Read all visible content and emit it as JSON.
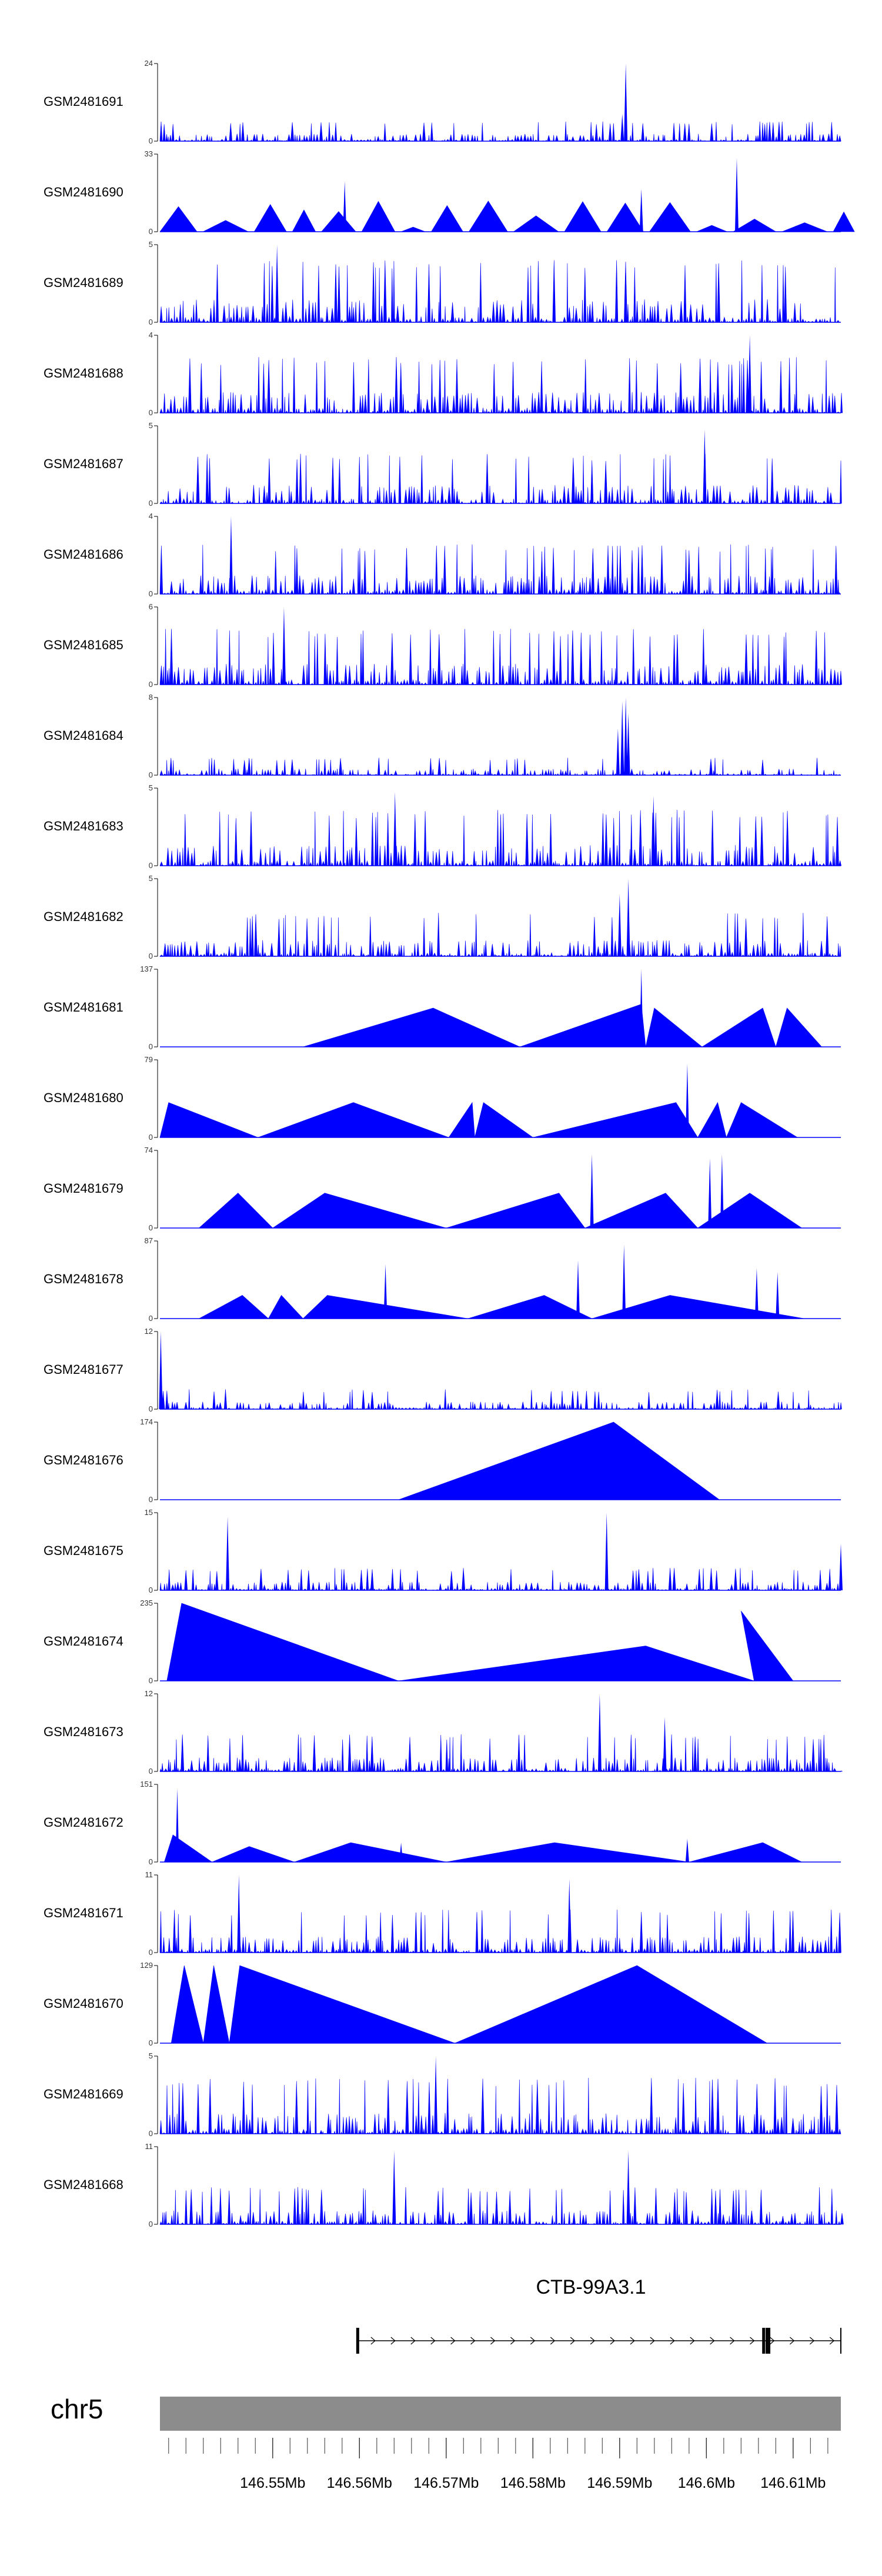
{
  "colors": {
    "signal": "#0000ff",
    "axis": "#000000",
    "ideogram": "#8c8c8c",
    "gene": "#000000"
  },
  "chart_data": {
    "type": "area",
    "tracks": [
      {
        "name": "GSM2481691",
        "ymax": 24,
        "shape": "noise",
        "scale": 0.16,
        "spikes": [
          [
            146.5907,
            1.0
          ],
          [
            146.5903,
            0.35
          ]
        ]
      },
      {
        "name": "GSM2481690",
        "ymax": 33,
        "shape": "tri",
        "scale": 0.3,
        "spikes": [
          [
            146.6035,
            0.95
          ],
          [
            146.5925,
            0.55
          ],
          [
            146.5583,
            0.65
          ]
        ]
      },
      {
        "name": "GSM2481689",
        "ymax": 5,
        "shape": "noise",
        "scale": 0.5,
        "spikes": [
          [
            146.5505,
            1.0
          ]
        ]
      },
      {
        "name": "GSM2481688",
        "ymax": 4,
        "shape": "noise",
        "scale": 0.45,
        "spikes": [
          [
            146.605,
            1.0
          ]
        ]
      },
      {
        "name": "GSM2481687",
        "ymax": 5,
        "shape": "noise",
        "scale": 0.4,
        "spikes": [
          [
            146.5998,
            0.95
          ]
        ]
      },
      {
        "name": "GSM2481686",
        "ymax": 4,
        "shape": "noise",
        "scale": 0.4,
        "spikes": [
          [
            146.5452,
            1.0
          ]
        ]
      },
      {
        "name": "GSM2481685",
        "ymax": 6,
        "shape": "noise",
        "scale": 0.45,
        "spikes": [
          [
            146.5513,
            1.0
          ]
        ]
      },
      {
        "name": "GSM2481684",
        "ymax": 8,
        "shape": "noise",
        "scale": 0.14,
        "spikes": [
          [
            146.5903,
            0.95
          ],
          [
            146.5907,
            1.0
          ],
          [
            146.591,
            0.8
          ],
          [
            146.5898,
            0.6
          ]
        ]
      },
      {
        "name": "GSM2481683",
        "ymax": 5,
        "shape": "noise",
        "scale": 0.45,
        "spikes": [
          [
            146.5641,
            0.95
          ],
          [
            146.5939,
            0.9
          ]
        ]
      },
      {
        "name": "GSM2481682",
        "ymax": 5,
        "shape": "noise",
        "scale": 0.35,
        "spikes": [
          [
            146.591,
            1.0
          ],
          [
            146.59,
            0.8
          ]
        ]
      },
      {
        "name": "GSM2481681",
        "ymax": 137,
        "shape": "wide",
        "scale": 0.0,
        "peaks": [
          [
            146.5535,
            0.0
          ],
          [
            146.5685,
            0.5
          ],
          [
            146.5785,
            0.0
          ],
          [
            146.5925,
            0.55
          ],
          [
            146.593,
            0.0
          ],
          [
            146.594,
            0.5
          ],
          [
            146.5995,
            0.0
          ],
          [
            146.6065,
            0.5
          ],
          [
            146.608,
            0.0
          ],
          [
            146.6093,
            0.5
          ],
          [
            146.6133,
            0.0
          ]
        ],
        "spikes": [
          [
            146.5925,
            1.0
          ]
        ]
      },
      {
        "name": "GSM2481680",
        "ymax": 79,
        "shape": "wide",
        "scale": 0.0,
        "peaks": [
          [
            146.537,
            0.0
          ],
          [
            146.538,
            0.45
          ],
          [
            146.5483,
            0.0
          ],
          [
            146.5593,
            0.45
          ],
          [
            146.5703,
            0.0
          ],
          [
            146.573,
            0.45
          ],
          [
            146.5733,
            0.0
          ],
          [
            146.5743,
            0.45
          ],
          [
            146.58,
            0.0
          ],
          [
            146.5965,
            0.45
          ],
          [
            146.599,
            0.0
          ],
          [
            146.6013,
            0.45
          ],
          [
            146.6023,
            0.0
          ],
          [
            146.604,
            0.45
          ],
          [
            146.6105,
            0.0
          ]
        ],
        "spikes": [
          [
            146.5978,
            0.95
          ]
        ]
      },
      {
        "name": "GSM2481679",
        "ymax": 74,
        "shape": "wide",
        "scale": 0.0,
        "peaks": [
          [
            146.5415,
            0.0
          ],
          [
            146.546,
            0.45
          ],
          [
            146.55,
            0.0
          ],
          [
            146.556,
            0.45
          ],
          [
            146.57,
            0.0
          ],
          [
            146.583,
            0.45
          ],
          [
            146.586,
            0.0
          ],
          [
            146.5953,
            0.45
          ],
          [
            146.599,
            0.0
          ],
          [
            146.605,
            0.45
          ],
          [
            146.611,
            0.0
          ]
        ],
        "spikes": [
          [
            146.5868,
            0.95
          ],
          [
            146.6004,
            0.9
          ],
          [
            146.6018,
            0.95
          ]
        ]
      },
      {
        "name": "GSM2481678",
        "ymax": 87,
        "shape": "wide",
        "scale": 0.0,
        "peaks": [
          [
            146.5415,
            0.0
          ],
          [
            146.5465,
            0.3
          ],
          [
            146.5495,
            0.0
          ],
          [
            146.551,
            0.3
          ],
          [
            146.5535,
            0.0
          ],
          [
            146.5563,
            0.3
          ],
          [
            146.5725,
            0.0
          ],
          [
            146.5813,
            0.3
          ],
          [
            146.5868,
            0.0
          ],
          [
            146.5958,
            0.3
          ],
          [
            146.6113,
            0.0
          ]
        ],
        "spikes": [
          [
            146.563,
            0.7
          ],
          [
            146.5852,
            0.75
          ],
          [
            146.5905,
            0.95
          ],
          [
            146.6058,
            0.65
          ],
          [
            146.6082,
            0.6
          ]
        ]
      },
      {
        "name": "GSM2481677",
        "ymax": 12,
        "shape": "noise",
        "scale": 0.16,
        "spikes": [
          [
            146.5371,
            1.0
          ]
        ]
      },
      {
        "name": "GSM2481676",
        "ymax": 174,
        "shape": "wide",
        "scale": 0.0,
        "peaks": [
          [
            146.5645,
            0.0
          ],
          [
            146.5893,
            1.0
          ],
          [
            146.6015,
            0.0
          ]
        ],
        "spikes": []
      },
      {
        "name": "GSM2481675",
        "ymax": 15,
        "shape": "noise",
        "scale": 0.18,
        "spikes": [
          [
            146.5448,
            0.95
          ],
          [
            146.5885,
            1.0
          ],
          [
            146.6155,
            0.6
          ]
        ]
      },
      {
        "name": "GSM2481674",
        "ymax": 235,
        "shape": "wide",
        "scale": 0.0,
        "peaks": [
          [
            146.5378,
            0.0
          ],
          [
            146.5395,
            1.0
          ],
          [
            146.5645,
            0.0
          ],
          [
            146.593,
            0.45
          ],
          [
            146.6055,
            0.0
          ],
          [
            146.604,
            0.9
          ],
          [
            146.61,
            0.0
          ]
        ],
        "spikes": []
      },
      {
        "name": "GSM2481673",
        "ymax": 12,
        "shape": "noise",
        "scale": 0.3,
        "spikes": [
          [
            146.5877,
            1.0
          ],
          [
            146.5952,
            0.7
          ]
        ]
      },
      {
        "name": "GSM2481672",
        "ymax": 151,
        "shape": "wide",
        "scale": 0.0,
        "peaks": [
          [
            146.5375,
            0.0
          ],
          [
            146.5385,
            0.35
          ],
          [
            146.543,
            0.0
          ],
          [
            146.5473,
            0.2
          ],
          [
            146.5525,
            0.0
          ],
          [
            146.559,
            0.25
          ],
          [
            146.57,
            0.0
          ],
          [
            146.5825,
            0.25
          ],
          [
            146.598,
            0.0
          ],
          [
            146.6065,
            0.25
          ],
          [
            146.611,
            0.0
          ]
        ],
        "spikes": [
          [
            146.539,
            0.95
          ],
          [
            146.5978,
            0.3
          ],
          [
            146.5648,
            0.25
          ]
        ]
      },
      {
        "name": "GSM2481671",
        "ymax": 11,
        "shape": "noise",
        "scale": 0.35,
        "spikes": [
          [
            146.5461,
            1.0
          ],
          [
            146.5842,
            0.95
          ]
        ]
      },
      {
        "name": "GSM2481670",
        "ymax": 129,
        "shape": "wide",
        "scale": 0.0,
        "peaks": [
          [
            146.5383,
            0.0
          ],
          [
            146.5398,
            1.0
          ],
          [
            146.542,
            0.0
          ],
          [
            146.5432,
            1.0
          ],
          [
            146.545,
            0.0
          ],
          [
            146.5462,
            1.0
          ],
          [
            146.571,
            0.0
          ],
          [
            146.592,
            1.0
          ],
          [
            146.607,
            0.0
          ]
        ],
        "spikes": []
      },
      {
        "name": "GSM2481669",
        "ymax": 5,
        "shape": "noise",
        "scale": 0.45,
        "spikes": [
          [
            146.5688,
            1.0
          ]
        ]
      },
      {
        "name": "GSM2481668",
        "ymax": 11,
        "shape": "noise",
        "scale": 0.3,
        "spikes": [
          [
            146.564,
            0.95
          ],
          [
            146.591,
            0.95
          ]
        ]
      }
    ],
    "xlim": [
      146.537,
      146.6155
    ],
    "chromosome": "chr5",
    "xticks": [
      "146.55Mb",
      "146.56Mb",
      "146.57Mb",
      "146.58Mb",
      "146.59Mb",
      "146.6Mb",
      "146.61Mb"
    ],
    "xtick_values": [
      146.55,
      146.56,
      146.57,
      146.58,
      146.59,
      146.6,
      146.61
    ],
    "gene": {
      "name": "CTB-99A3.1",
      "start": 146.5598,
      "end": 146.6155,
      "strand": "+",
      "exons": [
        146.5598,
        146.6066,
        146.607,
        146.6072,
        146.6155
      ]
    }
  }
}
